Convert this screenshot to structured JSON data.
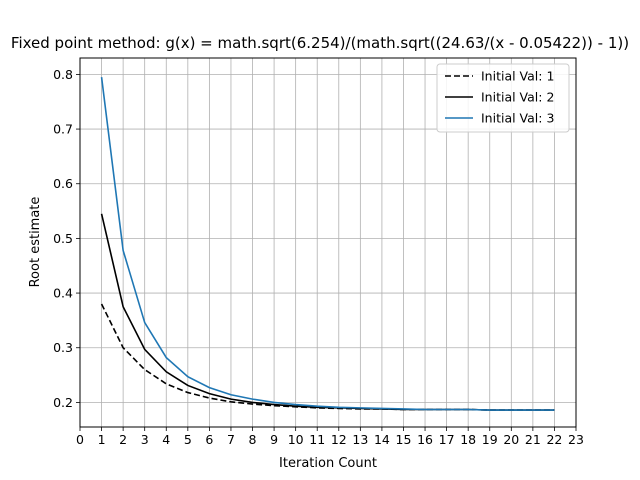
{
  "chart_data": {
    "type": "line",
    "title": "Fixed point method: g(x) = math.sqrt(6.254)/(math.sqrt((24.63/(x - 0.05422)) - 1))",
    "xlabel": "Iteration Count",
    "ylabel": "Root estimate",
    "xlim": [
      0,
      23
    ],
    "ylim": [
      0.155,
      0.83
    ],
    "xticks": [
      0,
      1,
      2,
      3,
      4,
      5,
      6,
      7,
      8,
      9,
      10,
      11,
      12,
      13,
      14,
      15,
      16,
      17,
      18,
      19,
      20,
      21,
      22,
      23
    ],
    "yticks": [
      0.2,
      0.3,
      0.4,
      0.5,
      0.6,
      0.7,
      0.8
    ],
    "ytick_labels": [
      "0.2",
      "0.3",
      "0.4",
      "0.5",
      "0.6",
      "0.7",
      "0.8"
    ],
    "grid": true,
    "legend": "top-right",
    "x": [
      1,
      2,
      3,
      4,
      5,
      6,
      7,
      8,
      9,
      10,
      11,
      12,
      13,
      14,
      15,
      16,
      17,
      18,
      19,
      20,
      21,
      22
    ],
    "series": [
      {
        "name": "Initial Val: 1",
        "color": "#000000",
        "dash": true,
        "values": [
          0.38,
          0.3,
          0.26,
          0.234,
          0.218,
          0.208,
          0.201,
          0.197,
          0.194,
          0.192,
          0.19,
          0.189,
          0.188,
          0.188,
          0.187,
          0.187,
          0.187,
          0.187,
          0.186,
          0.186,
          0.186,
          0.186
        ]
      },
      {
        "name": "Initial Val: 2",
        "color": "#000000",
        "dash": false,
        "values": [
          0.545,
          0.375,
          0.297,
          0.256,
          0.231,
          0.216,
          0.206,
          0.2,
          0.196,
          0.193,
          0.191,
          0.19,
          0.189,
          0.188,
          0.187,
          0.187,
          0.187,
          0.187,
          0.186,
          0.186,
          0.186,
          0.186
        ]
      },
      {
        "name": "Initial Val: 3",
        "color": "#1f77b4",
        "dash": false,
        "values": [
          0.795,
          0.478,
          0.346,
          0.282,
          0.247,
          0.227,
          0.214,
          0.206,
          0.2,
          0.196,
          0.193,
          0.191,
          0.19,
          0.189,
          0.188,
          0.187,
          0.187,
          0.187,
          0.186,
          0.186,
          0.186,
          0.186
        ]
      }
    ]
  }
}
